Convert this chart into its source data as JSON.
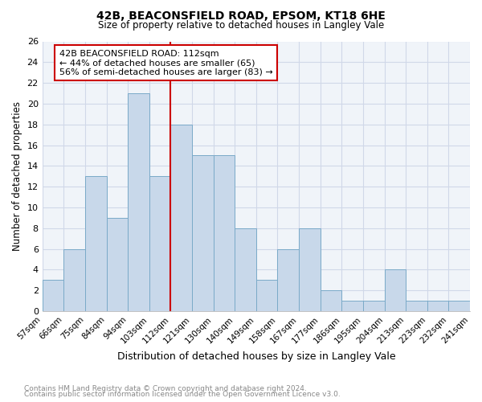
{
  "title1": "42B, BEACONSFIELD ROAD, EPSOM, KT18 6HE",
  "title2": "Size of property relative to detached houses in Langley Vale",
  "xlabel": "Distribution of detached houses by size in Langley Vale",
  "ylabel": "Number of detached properties",
  "footnote1": "Contains HM Land Registry data © Crown copyright and database right 2024.",
  "footnote2": "Contains public sector information licensed under the Open Government Licence v3.0.",
  "bin_edges": [
    "57sqm",
    "66sqm",
    "75sqm",
    "84sqm",
    "94sqm",
    "103sqm",
    "112sqm",
    "121sqm",
    "130sqm",
    "140sqm",
    "149sqm",
    "158sqm",
    "167sqm",
    "177sqm",
    "186sqm",
    "195sqm",
    "204sqm",
    "213sqm",
    "223sqm",
    "232sqm",
    "241sqm"
  ],
  "bar_heights": [
    3,
    6,
    13,
    9,
    21,
    13,
    18,
    15,
    15,
    8,
    3,
    6,
    8,
    2,
    1,
    1,
    4,
    1,
    1,
    1
  ],
  "highlight_edge_index": 6,
  "bar_color": "#c8d8ea",
  "bar_edgecolor": "#7aaac8",
  "highlight_line_color": "#cc0000",
  "ylim": [
    0,
    26
  ],
  "yticks": [
    0,
    2,
    4,
    6,
    8,
    10,
    12,
    14,
    16,
    18,
    20,
    22,
    24,
    26
  ],
  "annotation_line1": "42B BEACONSFIELD ROAD: 112sqm",
  "annotation_line2": "← 44% of detached houses are smaller (65)",
  "annotation_line3": "56% of semi-detached houses are larger (83) →",
  "annotation_box_facecolor": "#ffffff",
  "annotation_box_edgecolor": "#cc0000",
  "grid_color": "#d0d8e8",
  "background_color": "#ffffff",
  "plot_bg_color": "#f0f4f9"
}
